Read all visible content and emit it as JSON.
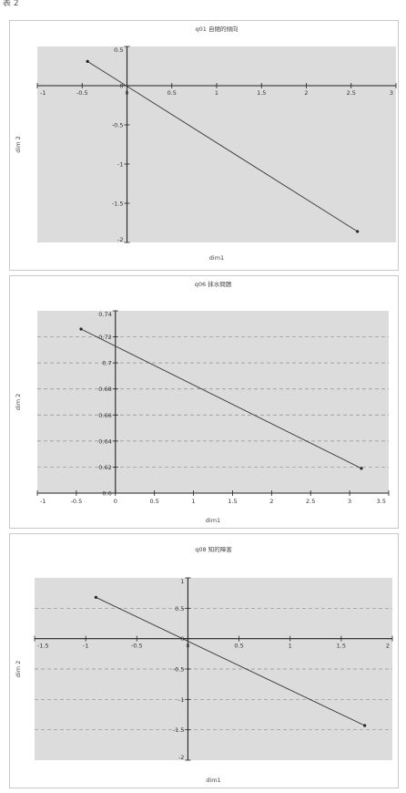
{
  "page_label": "表 2",
  "chart_data": [
    {
      "type": "line",
      "title": "q01 自閉的傾向",
      "xlabel": "dim1",
      "ylabel": "dim 2",
      "xlim": [
        -1,
        3
      ],
      "ylim": [
        -2,
        0.5
      ],
      "xticks": [
        -1,
        -0.5,
        0,
        0.5,
        1,
        1.5,
        2,
        2.5,
        3
      ],
      "xtick_labels": [
        "-1",
        "-0.5",
        "0",
        "0.5",
        "1",
        "1.5",
        "2",
        "2.5",
        "3"
      ],
      "yticks": [
        0.5,
        0,
        -0.5,
        -1,
        -1.5,
        -2
      ],
      "ytick_labels": [
        "0.5",
        "0",
        "-0.5",
        "-1",
        "-1.5",
        "-2"
      ],
      "grid": false,
      "x_axis_at": "y=0",
      "y_axis_at": "x=0",
      "series": [
        {
          "x": [
            -0.44,
            2.57
          ],
          "y": [
            0.31,
            -1.86
          ]
        }
      ]
    },
    {
      "type": "line",
      "title": "q06 抹水問題",
      "xlabel": "dim1",
      "ylabel": "dim 2",
      "xlim": [
        -1,
        3.5
      ],
      "ylim": [
        0.6,
        0.74
      ],
      "xticks": [
        -1,
        -0.5,
        0,
        0.5,
        1,
        1.5,
        2,
        2.5,
        3,
        3.5
      ],
      "xtick_labels": [
        "-1",
        "-0.5",
        "0",
        "0.5",
        "1",
        "1.5",
        "2",
        "2.5",
        "3",
        "3.5"
      ],
      "yticks": [
        0.74,
        0.72,
        0.7,
        0.68,
        0.66,
        0.64,
        0.62,
        0.6
      ],
      "ytick_labels": [
        "0.74",
        "0.72",
        "0.7",
        "0.68",
        "0.66",
        "0.64",
        "0.62",
        "0.6"
      ],
      "grid": true,
      "x_axis_at": "bottom",
      "y_axis_at": "x=0",
      "series": [
        {
          "x": [
            -0.44,
            3.15
          ],
          "y": [
            0.726,
            0.619
          ]
        }
      ]
    },
    {
      "type": "line",
      "title": "q08 知的障害",
      "xlabel": "dim1",
      "ylabel": "dim 2",
      "xlim": [
        -1.5,
        2
      ],
      "ylim": [
        -2,
        1
      ],
      "xticks": [
        -1.5,
        -1,
        -0.5,
        0,
        0.5,
        1,
        1.5,
        2
      ],
      "xtick_labels": [
        "-1.5",
        "-1",
        "-0.5",
        "0",
        "0.5",
        "1",
        "1.5",
        "2"
      ],
      "yticks": [
        1,
        0.5,
        0,
        -0.5,
        -1,
        -1.5,
        -2
      ],
      "ytick_labels": [
        "1",
        "0.5",
        "0",
        "-0.5",
        "-1",
        "-1.5",
        "-2"
      ],
      "grid": true,
      "x_axis_at": "y=0",
      "y_axis_at": "x=0",
      "series": [
        {
          "x": [
            -0.9,
            1.73
          ],
          "y": [
            0.68,
            -1.43
          ]
        }
      ]
    }
  ]
}
